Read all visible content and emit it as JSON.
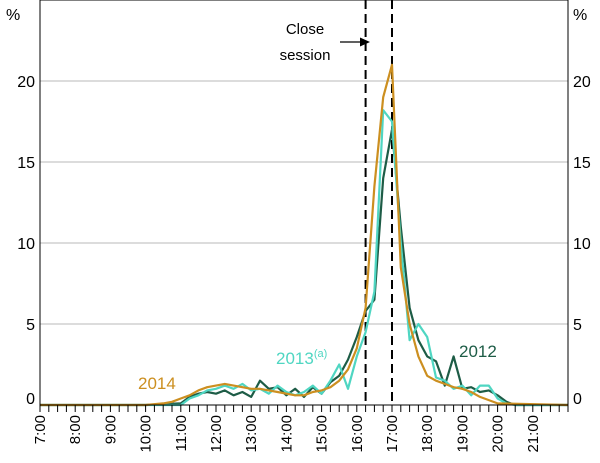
{
  "chart_data": {
    "type": "line",
    "y_unit": "%",
    "ylim": [
      0,
      25
    ],
    "y_ticks": [
      0,
      5,
      10,
      15,
      20
    ],
    "xlim": [
      7.0,
      22.0
    ],
    "x_ticks": [
      {
        "value": 7,
        "label": "7:00"
      },
      {
        "value": 8,
        "label": "8:00"
      },
      {
        "value": 9,
        "label": "9:00"
      },
      {
        "value": 10,
        "label": "10:00"
      },
      {
        "value": 11,
        "label": "11:00"
      },
      {
        "value": 12,
        "label": "12:00"
      },
      {
        "value": 13,
        "label": "13:00"
      },
      {
        "value": 14,
        "label": "14:00"
      },
      {
        "value": 15,
        "label": "15:00"
      },
      {
        "value": 16,
        "label": "16:00"
      },
      {
        "value": 17,
        "label": "17:00"
      },
      {
        "value": 18,
        "label": "18:00"
      },
      {
        "value": 19,
        "label": "19:00"
      },
      {
        "value": 20,
        "label": "20:00"
      },
      {
        "value": 21,
        "label": "21:00"
      }
    ],
    "grid": true,
    "close_session": {
      "start": 16.25,
      "end": 17.0,
      "label_line1": "Close",
      "label_line2": "session"
    },
    "series": [
      {
        "name": "2012",
        "color": "#1d5c46",
        "x": [
          7.0,
          10.0,
          11.0,
          11.25,
          11.5,
          11.75,
          12.0,
          12.25,
          12.5,
          12.75,
          13.0,
          13.25,
          13.5,
          13.75,
          14.0,
          14.25,
          14.5,
          14.75,
          15.0,
          15.25,
          15.5,
          15.75,
          16.0,
          16.25,
          16.5,
          16.75,
          17.0,
          17.25,
          17.5,
          17.75,
          18.0,
          18.25,
          18.5,
          18.75,
          19.0,
          19.25,
          19.5,
          19.75,
          20.0,
          20.25,
          20.5,
          22.0
        ],
        "y": [
          0.0,
          0.0,
          0.1,
          0.5,
          0.7,
          0.8,
          0.7,
          0.9,
          0.6,
          0.8,
          0.5,
          1.5,
          1.0,
          1.1,
          0.6,
          1.0,
          0.5,
          1.1,
          0.7,
          1.4,
          1.8,
          2.8,
          4.2,
          5.8,
          6.5,
          14.0,
          17.0,
          11.0,
          6.0,
          4.0,
          3.0,
          2.7,
          1.2,
          3.0,
          1.0,
          1.1,
          0.8,
          0.9,
          0.6,
          0.2,
          0.0,
          0.0
        ]
      },
      {
        "name": "2013",
        "name_superscript": "(a)",
        "color": "#4fd6c2",
        "x": [
          7.0,
          10.0,
          11.0,
          11.25,
          11.5,
          11.75,
          12.0,
          12.25,
          12.5,
          12.75,
          13.0,
          13.25,
          13.5,
          13.75,
          14.0,
          14.25,
          14.5,
          14.75,
          15.0,
          15.25,
          15.5,
          15.75,
          16.0,
          16.25,
          16.5,
          16.75,
          17.0,
          17.25,
          17.5,
          17.75,
          18.0,
          18.25,
          18.5,
          18.75,
          19.0,
          19.25,
          19.5,
          19.75,
          20.0,
          20.25,
          20.5,
          22.0
        ],
        "y": [
          0.0,
          0.0,
          0.0,
          0.4,
          0.6,
          0.9,
          1.0,
          1.2,
          1.0,
          1.3,
          0.9,
          1.0,
          0.7,
          1.2,
          0.8,
          0.6,
          0.8,
          1.2,
          0.7,
          1.5,
          2.5,
          1.0,
          3.0,
          4.5,
          7.0,
          18.2,
          17.5,
          10.0,
          4.0,
          5.0,
          4.2,
          1.7,
          1.5,
          1.0,
          1.2,
          0.6,
          1.2,
          1.2,
          0.4,
          0.1,
          0.0,
          0.0
        ]
      },
      {
        "name": "2014",
        "color": "#cc8f20",
        "x": [
          7.0,
          10.0,
          10.5,
          10.75,
          11.0,
          11.25,
          11.5,
          11.75,
          12.0,
          12.25,
          12.5,
          12.75,
          13.0,
          13.25,
          13.5,
          13.75,
          14.0,
          14.25,
          14.5,
          14.75,
          15.0,
          15.25,
          15.5,
          15.75,
          16.0,
          16.25,
          16.5,
          16.75,
          17.0,
          17.25,
          17.5,
          17.75,
          18.0,
          18.25,
          18.5,
          18.75,
          19.0,
          19.25,
          19.5,
          19.75,
          20.0,
          22.0
        ],
        "y": [
          0.0,
          0.0,
          0.1,
          0.2,
          0.4,
          0.6,
          0.9,
          1.1,
          1.2,
          1.3,
          1.2,
          1.1,
          1.0,
          1.0,
          0.9,
          0.8,
          0.7,
          0.6,
          0.6,
          0.8,
          0.9,
          1.1,
          1.5,
          2.2,
          3.5,
          6.0,
          13.5,
          19.0,
          21.0,
          8.5,
          5.0,
          3.0,
          1.8,
          1.5,
          1.3,
          1.1,
          1.0,
          0.8,
          0.5,
          0.3,
          0.1,
          0.0
        ]
      }
    ]
  }
}
